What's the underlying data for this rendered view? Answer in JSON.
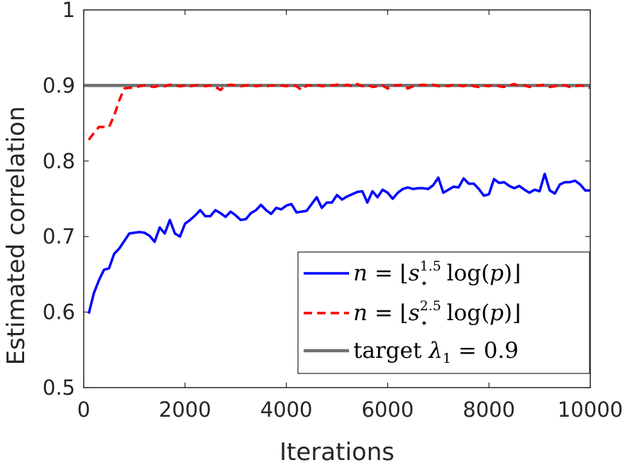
{
  "chart_data": {
    "type": "line",
    "title": "",
    "xlabel": "Iterations",
    "ylabel": "Estimated correlation",
    "xlim": [
      0,
      10000
    ],
    "ylim": [
      0.5,
      1
    ],
    "grid": false,
    "legend_position": "bottom-right",
    "x_ticks": [
      0,
      2000,
      4000,
      6000,
      8000,
      10000
    ],
    "y_ticks": [
      0.5,
      0.6,
      0.7,
      0.8,
      0.9,
      1
    ],
    "x_tick_labels": [
      "0",
      "2000",
      "4000",
      "6000",
      "8000",
      "10000"
    ],
    "y_tick_labels": [
      "0.5",
      "0.6",
      "0.7",
      "0.8",
      "0.9",
      "1"
    ],
    "x": [
      100,
      200,
      300,
      400,
      500,
      600,
      700,
      800,
      900,
      1000,
      1100,
      1200,
      1300,
      1400,
      1500,
      1600,
      1700,
      1800,
      1900,
      2000,
      2100,
      2200,
      2300,
      2400,
      2500,
      2600,
      2700,
      2800,
      2900,
      3000,
      3100,
      3200,
      3300,
      3400,
      3500,
      3600,
      3700,
      3800,
      3900,
      4000,
      4100,
      4200,
      4300,
      4400,
      4500,
      4600,
      4700,
      4800,
      4900,
      5000,
      5100,
      5200,
      5300,
      5400,
      5500,
      5600,
      5700,
      5800,
      5900,
      6000,
      6100,
      6200,
      6300,
      6400,
      6500,
      6600,
      6700,
      6800,
      6900,
      7000,
      7100,
      7200,
      7300,
      7400,
      7500,
      7600,
      7700,
      7800,
      7900,
      8000,
      8100,
      8200,
      8300,
      8400,
      8500,
      8600,
      8700,
      8800,
      8900,
      9000,
      9100,
      9200,
      9300,
      9400,
      9500,
      9600,
      9700,
      9800,
      9900,
      10000
    ],
    "series": [
      {
        "name": "n = ⌊s⋆^1.5 log(p)⌋",
        "color": "#0000ff",
        "style": "solid",
        "values": [
          0.598,
          0.625,
          0.642,
          0.656,
          0.658,
          0.677,
          0.684,
          0.694,
          0.704,
          0.705,
          0.706,
          0.705,
          0.701,
          0.693,
          0.712,
          0.704,
          0.722,
          0.704,
          0.7,
          0.717,
          0.722,
          0.728,
          0.735,
          0.727,
          0.727,
          0.735,
          0.731,
          0.726,
          0.733,
          0.728,
          0.722,
          0.723,
          0.731,
          0.735,
          0.742,
          0.735,
          0.73,
          0.738,
          0.736,
          0.741,
          0.743,
          0.732,
          0.733,
          0.734,
          0.743,
          0.752,
          0.738,
          0.745,
          0.745,
          0.755,
          0.749,
          0.753,
          0.756,
          0.759,
          0.76,
          0.745,
          0.76,
          0.752,
          0.762,
          0.758,
          0.75,
          0.758,
          0.763,
          0.765,
          0.763,
          0.764,
          0.764,
          0.763,
          0.768,
          0.778,
          0.758,
          0.762,
          0.766,
          0.765,
          0.777,
          0.77,
          0.77,
          0.763,
          0.754,
          0.756,
          0.776,
          0.771,
          0.772,
          0.767,
          0.764,
          0.767,
          0.762,
          0.758,
          0.762,
          0.76,
          0.783,
          0.761,
          0.757,
          0.769,
          0.772,
          0.772,
          0.774,
          0.769,
          0.761,
          0.761
        ]
      },
      {
        "name": "n = ⌊s⋆^2.5 log(p)⌋",
        "color": "#ff0000",
        "style": "dashed",
        "values": [
          0.828,
          0.837,
          0.845,
          0.845,
          0.845,
          0.86,
          0.88,
          0.896,
          0.897,
          0.897,
          0.899,
          0.9,
          0.899,
          0.898,
          0.9,
          0.899,
          0.901,
          0.9,
          0.899,
          0.9,
          0.899,
          0.9,
          0.901,
          0.899,
          0.9,
          0.898,
          0.894,
          0.9,
          0.901,
          0.9,
          0.899,
          0.9,
          0.901,
          0.899,
          0.9,
          0.899,
          0.9,
          0.9,
          0.9,
          0.899,
          0.901,
          0.899,
          0.894,
          0.9,
          0.9,
          0.901,
          0.899,
          0.9,
          0.9,
          0.901,
          0.899,
          0.901,
          0.899,
          0.902,
          0.899,
          0.901,
          0.898,
          0.899,
          0.9,
          0.896,
          0.9,
          0.9,
          0.901,
          0.896,
          0.899,
          0.9,
          0.901,
          0.9,
          0.901,
          0.899,
          0.9,
          0.899,
          0.901,
          0.9,
          0.899,
          0.902,
          0.899,
          0.898,
          0.9,
          0.899,
          0.901,
          0.899,
          0.898,
          0.9,
          0.902,
          0.899,
          0.9,
          0.898,
          0.9,
          0.9,
          0.901,
          0.898,
          0.899,
          0.9,
          0.9,
          0.898,
          0.899,
          0.9,
          0.899,
          0.897
        ]
      },
      {
        "name": "target λ1 = 0.9",
        "color": "#707070",
        "style": "solid",
        "constant": 0.9
      }
    ]
  },
  "legend": {
    "entries": [
      {
        "prefix": "n",
        "equals": " = ⌊",
        "base": "s",
        "sub": "⋆",
        "sup": "1.5",
        "suffix": " log(",
        "var": "p",
        "close": ")⌋"
      },
      {
        "prefix": "n",
        "equals": " = ⌊",
        "base": "s",
        "sub": "⋆",
        "sup": "2.5",
        "suffix": " log(",
        "var": "p",
        "close": ")⌋"
      },
      {
        "text": "target ",
        "symbol": "λ",
        "sub": "1",
        "rest": " = 0.9"
      }
    ]
  }
}
